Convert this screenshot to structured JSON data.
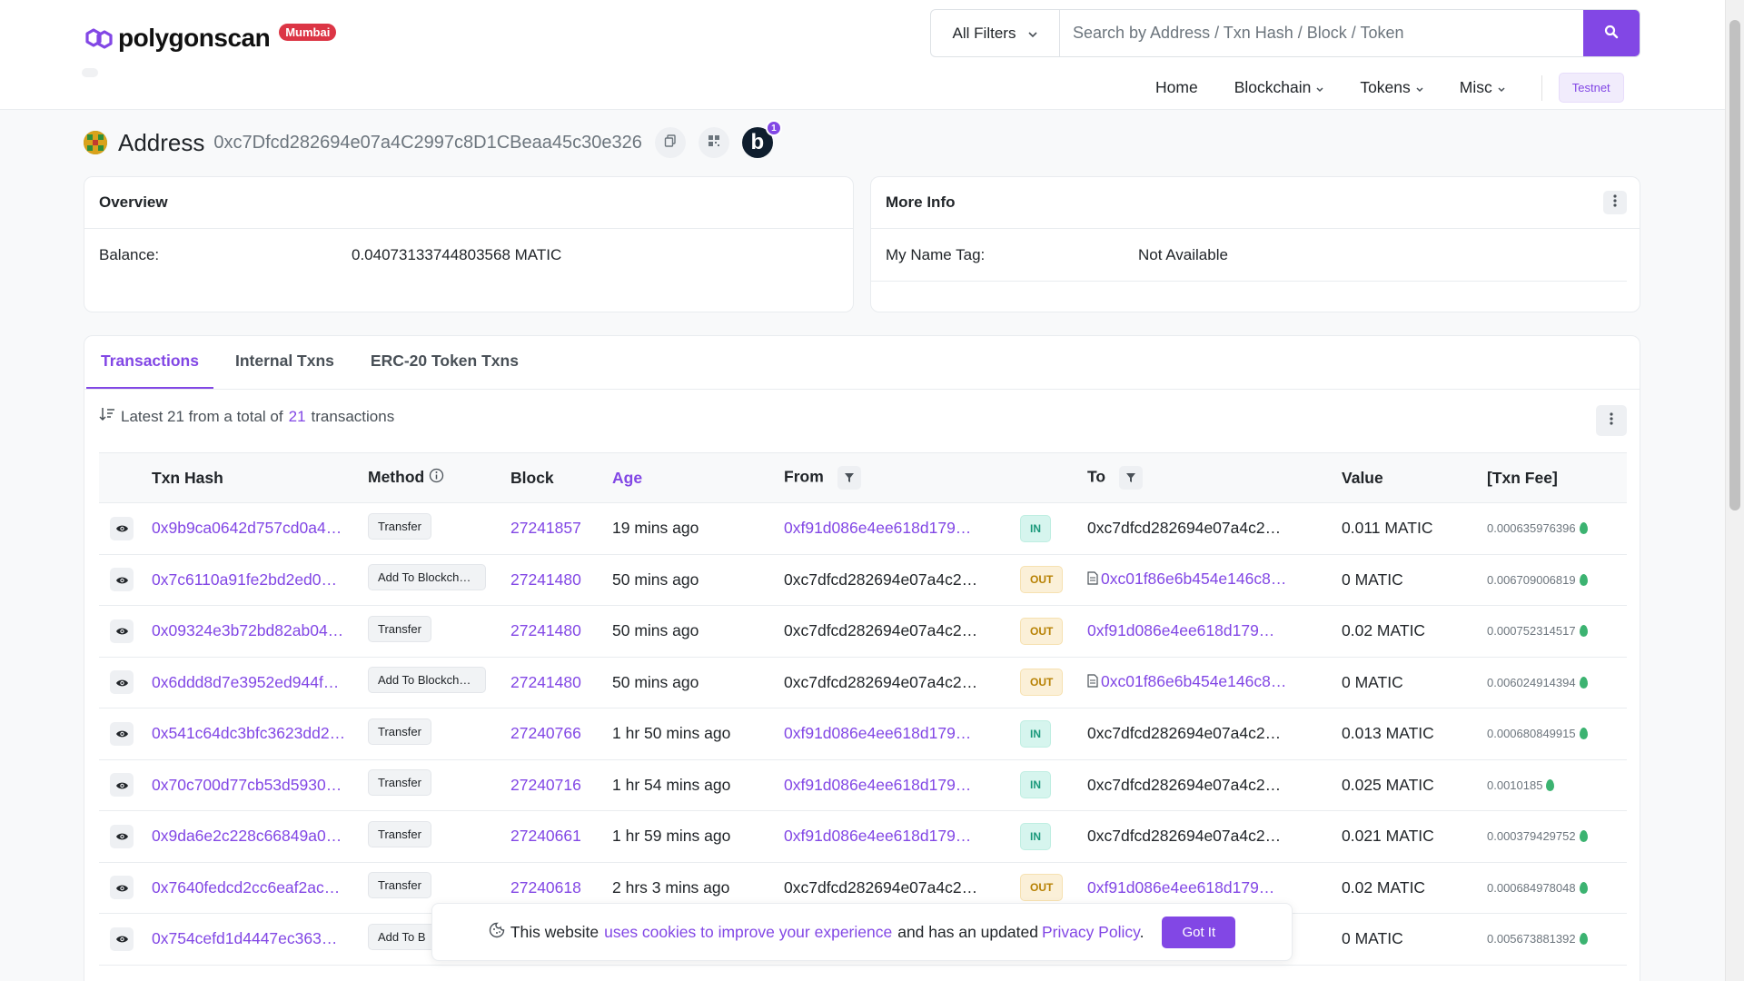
{
  "brand": {
    "name": "polygonscan",
    "network": "Mumbai"
  },
  "search": {
    "filter_label": "All Filters",
    "placeholder": "Search by Address / Txn Hash / Block / Token"
  },
  "nav": {
    "home": "Home",
    "blockchain": "Blockchain",
    "tokens": "Tokens",
    "misc": "Misc",
    "testnet": "Testnet"
  },
  "address": {
    "label": "Address",
    "hash": "0xc7Dfcd282694e07a4C2997c8D1CBeaa45c30e326",
    "notification_count": "1",
    "b_label": "b"
  },
  "overview": {
    "title": "Overview",
    "balance_label": "Balance:",
    "balance_value": "0.04073133744803568 MATIC"
  },
  "more_info": {
    "title": "More Info",
    "name_tag_label": "My Name Tag:",
    "name_tag_value": "Not Available"
  },
  "tabs": [
    "Transactions",
    "Internal Txns",
    "ERC-20 Token Txns"
  ],
  "summary": {
    "prefix": "Latest 21 from a total of",
    "count": "21",
    "suffix": "transactions"
  },
  "table": {
    "headers": {
      "hash": "Txn Hash",
      "method": "Method",
      "block": "Block",
      "age": "Age",
      "from": "From",
      "to": "To",
      "value": "Value",
      "fee": "[Txn Fee]"
    },
    "rows": [
      {
        "hash": "0x9b9ca0642d757cd0a4…",
        "method": "Transfer",
        "block": "27241857",
        "age": "19 mins ago",
        "from": "0xf91d086e4ee618d179…",
        "dir": "IN",
        "to": "0xc7dfcd282694e07a4c2…",
        "value": "0.011 MATIC",
        "fee": "0.000635976396"
      },
      {
        "hash": "0x7c6110a91fe2bd2ed0…",
        "method": "Add To Blockchai…",
        "block": "27241480",
        "age": "50 mins ago",
        "from": "0xc7dfcd282694e07a4c2…",
        "dir": "OUT",
        "to": "0xc01f86e6b454e146c8…",
        "value": "0 MATIC",
        "fee": "0.006709006819"
      },
      {
        "hash": "0x09324e3b72bd82ab04…",
        "method": "Transfer",
        "block": "27241480",
        "age": "50 mins ago",
        "from": "0xc7dfcd282694e07a4c2…",
        "dir": "OUT",
        "to": "0xf91d086e4ee618d179…",
        "value": "0.02 MATIC",
        "fee": "0.000752314517"
      },
      {
        "hash": "0x6ddd8d7e3952ed944f…",
        "method": "Add To Blockchai…",
        "block": "27241480",
        "age": "50 mins ago",
        "from": "0xc7dfcd282694e07a4c2…",
        "dir": "OUT",
        "to": "0xc01f86e6b454e146c8…",
        "value": "0 MATIC",
        "fee": "0.006024914394"
      },
      {
        "hash": "0x541c64dc3bfc3623dd2…",
        "method": "Transfer",
        "block": "27240766",
        "age": "1 hr 50 mins ago",
        "from": "0xf91d086e4ee618d179…",
        "dir": "IN",
        "to": "0xc7dfcd282694e07a4c2…",
        "value": "0.013 MATIC",
        "fee": "0.000680849915"
      },
      {
        "hash": "0x70c700d77cb53d5930…",
        "method": "Transfer",
        "block": "27240716",
        "age": "1 hr 54 mins ago",
        "from": "0xf91d086e4ee618d179…",
        "dir": "IN",
        "to": "0xc7dfcd282694e07a4c2…",
        "value": "0.025 MATIC",
        "fee": "0.0010185"
      },
      {
        "hash": "0x9da6e2c228c66849a0…",
        "method": "Transfer",
        "block": "27240661",
        "age": "1 hr 59 mins ago",
        "from": "0xf91d086e4ee618d179…",
        "dir": "IN",
        "to": "0xc7dfcd282694e07a4c2…",
        "value": "0.021 MATIC",
        "fee": "0.000379429752"
      },
      {
        "hash": "0x7640fedcd2cc6eaf2ac…",
        "method": "Transfer",
        "block": "27240618",
        "age": "2 hrs 3 mins ago",
        "from": "0xc7dfcd282694e07a4c2…",
        "dir": "OUT",
        "to": "0xf91d086e4ee618d179…",
        "value": "0.02 MATIC",
        "fee": "0.000684978048"
      },
      {
        "hash": "0x754cefd1d4447ec363…",
        "method": "Add To B",
        "block": "",
        "age": "",
        "from": "",
        "dir": "",
        "to": "",
        "value": "0 MATIC",
        "fee": "0.005673881392"
      }
    ]
  },
  "cookie": {
    "text1": "This website",
    "link1": "uses cookies to improve your experience",
    "text2": "and has an updated",
    "link2": "Privacy Policy",
    "text3": ".",
    "button": "Got It"
  },
  "colors": {
    "accent": "#8247e5",
    "in_badge": "#19987a",
    "out_badge": "#b78103",
    "network_badge": "#dc3545"
  }
}
